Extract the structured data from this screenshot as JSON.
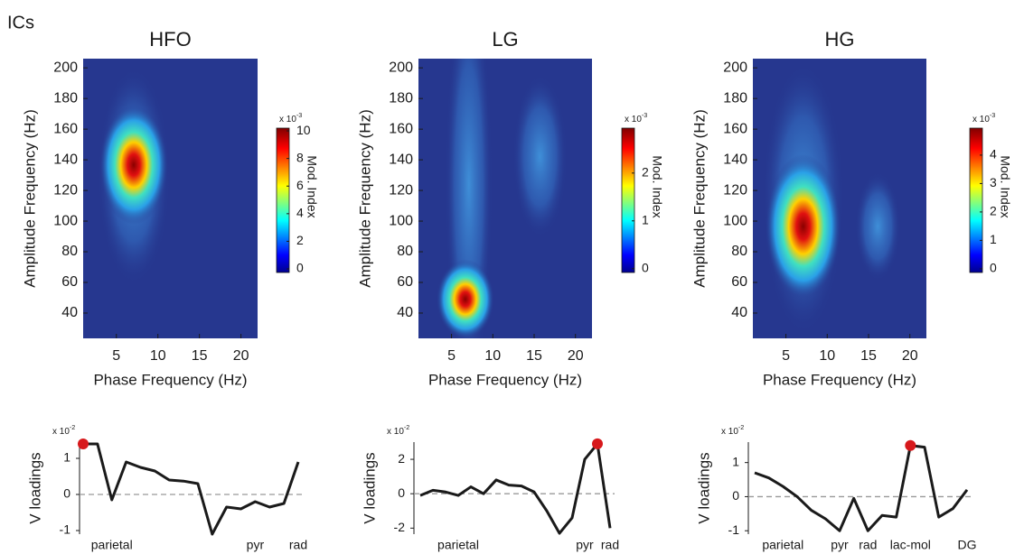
{
  "label": "ICs",
  "chart_data": [
    {
      "type": "heatmap",
      "title": "HFO",
      "xlabel": "Phase Frequency (Hz)",
      "ylabel": "Amplitude Frequency (Hz)",
      "xlim": [
        1,
        22
      ],
      "ylim": [
        23.5,
        206
      ],
      "xticks": [
        5,
        10,
        15,
        20
      ],
      "yticks": [
        40,
        60,
        80,
        100,
        120,
        140,
        160,
        180,
        200
      ],
      "colorbar": {
        "label": "Mod. Index",
        "base": "x 10",
        "exponent": "-3",
        "lim": [
          -0.26,
          10.2
        ],
        "ticks": [
          0,
          2,
          4,
          6,
          8,
          10
        ]
      }
    },
    {
      "type": "heatmap",
      "title": "LG",
      "xlabel": "Phase Frequency (Hz)",
      "ylabel": "Amplitude Frequency (Hz)",
      "xlim": [
        1,
        22
      ],
      "ylim": [
        23.5,
        206
      ],
      "xticks": [
        5,
        10,
        15,
        20
      ],
      "yticks": [
        40,
        60,
        80,
        100,
        120,
        140,
        160,
        180,
        200
      ],
      "colorbar": {
        "label": "Mod. Index",
        "base": "x 10",
        "exponent": "-3",
        "lim": [
          -0.08,
          2.94
        ],
        "ticks": [
          0,
          1,
          2
        ]
      }
    },
    {
      "type": "heatmap",
      "title": "HG",
      "xlabel": "Phase Frequency (Hz)",
      "ylabel": "Amplitude Frequency (Hz)",
      "xlim": [
        1,
        22
      ],
      "ylim": [
        23.5,
        206
      ],
      "xticks": [
        5,
        10,
        15,
        20
      ],
      "yticks": [
        40,
        60,
        80,
        100,
        120,
        140,
        160,
        180,
        200
      ],
      "colorbar": {
        "label": "Mod. Index",
        "base": "x 10",
        "exponent": "-3",
        "lim": [
          -0.13,
          4.95
        ],
        "ticks": [
          0,
          1,
          2,
          3,
          4
        ]
      }
    },
    {
      "type": "line",
      "ylabel": "V loadings",
      "base": "x 10",
      "exponent": "-2",
      "color": "#1a1a1a",
      "categories": [
        null,
        null,
        "parietal",
        null,
        null,
        null,
        null,
        null,
        null,
        null,
        null,
        null,
        "pyr",
        null,
        null,
        "rad"
      ],
      "values": [
        1.4,
        1.4,
        -0.15,
        0.9,
        0.75,
        0.65,
        0.4,
        0.37,
        0.3,
        -1.1,
        -0.35,
        -0.4,
        -0.2,
        -0.35,
        -0.25,
        0.9
      ],
      "highlight": 0,
      "highlight_color": "#d7191c",
      "zero_line_color": "#999999",
      "ylim": [
        -1.1,
        1.45
      ],
      "yticks": [
        -1,
        0,
        1
      ]
    },
    {
      "type": "line",
      "ylabel": "V loadings",
      "base": "x 10",
      "exponent": "-2",
      "color": "#1a1a1a",
      "categories": [
        null,
        null,
        null,
        "parietal",
        null,
        null,
        null,
        null,
        null,
        null,
        null,
        null,
        null,
        "pyr",
        null,
        "rad"
      ],
      "values": [
        -0.1,
        0.2,
        0.1,
        -0.1,
        0.4,
        0.0,
        0.8,
        0.5,
        0.45,
        0.1,
        -1.0,
        -2.3,
        -1.4,
        2.0,
        2.9,
        -2.0
      ],
      "highlight": 14,
      "highlight_color": "#d7191c",
      "zero_line_color": "#999999",
      "ylim": [
        -2.35,
        3.0
      ],
      "yticks": [
        -2,
        0,
        2
      ]
    },
    {
      "type": "line",
      "ylabel": "V loadings",
      "base": "x 10",
      "exponent": "-2",
      "color": "#1a1a1a",
      "categories": [
        null,
        null,
        "parietal",
        null,
        null,
        null,
        "pyr",
        null,
        "rad",
        null,
        null,
        "lac-mol",
        null,
        null,
        null,
        "DG"
      ],
      "values": [
        0.7,
        0.55,
        0.3,
        0.0,
        -0.4,
        -0.65,
        -1.0,
        -0.05,
        -1.0,
        -0.55,
        -0.6,
        1.5,
        1.45,
        -0.6,
        -0.35,
        0.2
      ],
      "highlight": 11,
      "highlight_color": "#d7191c",
      "zero_line_color": "#999999",
      "ylim": [
        -1.1,
        1.6
      ],
      "yticks": [
        -1,
        0,
        1
      ]
    }
  ]
}
